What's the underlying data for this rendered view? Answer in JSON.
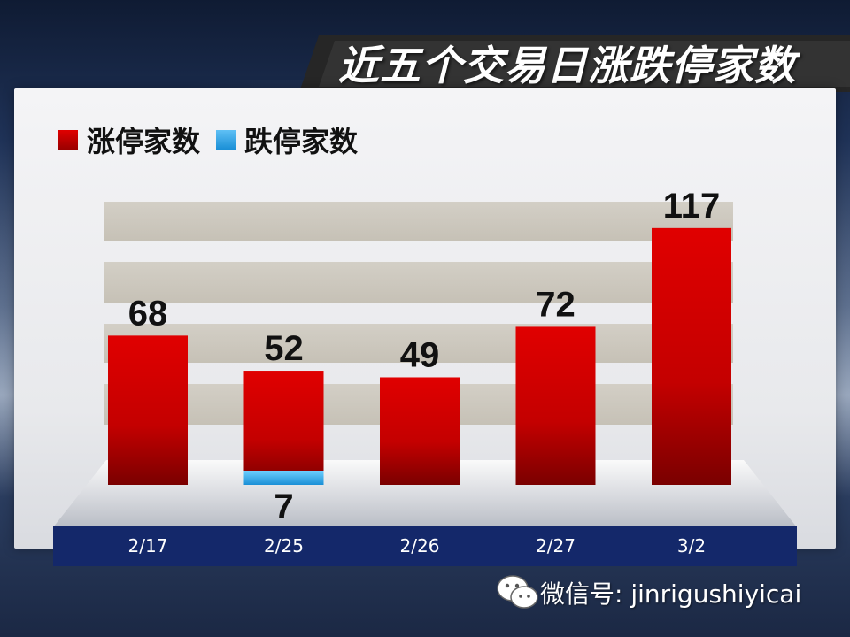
{
  "title": "近五个交易日涨跌停家数",
  "legend": {
    "items": [
      {
        "label": "涨停家数",
        "color": "#e00000"
      },
      {
        "label": "跌停家数",
        "color": "#1a8fd6"
      }
    ]
  },
  "watermark": {
    "text": "微信号: jinrigushiyicai",
    "icon": "wechat-icon"
  },
  "colors": {
    "limit_up": "#e00000",
    "limit_down": "#1a8fd6",
    "axis_band": "#14286a"
  },
  "chart_data": {
    "type": "bar",
    "title": "近五个交易日涨跌停家数",
    "categories": [
      "2/17",
      "2/25",
      "2/26",
      "2/27",
      "3/2"
    ],
    "series": [
      {
        "name": "涨停家数",
        "values": [
          68,
          52,
          49,
          72,
          117
        ]
      },
      {
        "name": "跌停家数",
        "values": [
          null,
          7,
          null,
          null,
          null
        ]
      }
    ],
    "xlabel": "",
    "ylabel": "",
    "legend_position": "top-left"
  }
}
